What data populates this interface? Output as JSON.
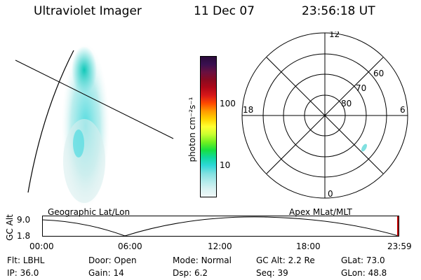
{
  "header": {
    "title": "Ultraviolet Imager",
    "date": "11 Dec 07",
    "time": "23:56:18 UT"
  },
  "colorbar": {
    "unit_label": "photon cm⁻²s⁻¹",
    "ticks": [
      "100",
      "10"
    ],
    "colors": [
      "#2a0a3a",
      "#3a1050",
      "#6a1040",
      "#8a0a20",
      "#b00818",
      "#d81818",
      "#ff4a00",
      "#ff9a00",
      "#ffd200",
      "#ffff30",
      "#c8ff30",
      "#70f020",
      "#18e040",
      "#10d8a0",
      "#30d8d8",
      "#80e0e0",
      "#b0eaea",
      "#d8f2f2",
      "#f0f8f8"
    ]
  },
  "polar": {
    "labels": {
      "top": "12",
      "bottom": "0",
      "left": "18",
      "right": "6"
    },
    "lat_labels": [
      "60",
      "70",
      "80"
    ]
  },
  "orbit": {
    "axis_label": "GC Alt",
    "y_ticks": [
      "9.0",
      "1.8"
    ],
    "left_title": "Geographic Lat/Lon",
    "right_title": "Apex MLat/MLT",
    "x_ticks": [
      "00:00",
      "06:00",
      "12:00",
      "18:00",
      "23:59"
    ]
  },
  "footer": {
    "row1": [
      {
        "label": "Flt:",
        "value": "LBHL"
      },
      {
        "label": "Door:",
        "value": "Open"
      },
      {
        "label": "Mode:",
        "value": "Normal"
      },
      {
        "label": "GC Alt:",
        "value": "2.2 Re"
      },
      {
        "label": "GLat:",
        "value": "73.0"
      }
    ],
    "row2": [
      {
        "label": "IP:",
        "value": "36.0"
      },
      {
        "label": "Gain:",
        "value": "14"
      },
      {
        "label": "Dsp:",
        "value": "6.2"
      },
      {
        "label": "Seq:",
        "value": "39"
      },
      {
        "label": "GLon:",
        "value": "48.8"
      }
    ]
  }
}
